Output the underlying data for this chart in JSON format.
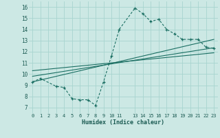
{
  "xlabel": "Humidex (Indice chaleur)",
  "bg_color": "#cce8e4",
  "grid_color": "#a8d4cf",
  "line_color": "#1a6e62",
  "xlim": [
    -0.5,
    23.5
  ],
  "ylim": [
    6.5,
    16.5
  ],
  "xticks": [
    0,
    1,
    2,
    3,
    4,
    5,
    6,
    7,
    8,
    9,
    10,
    11,
    13,
    14,
    15,
    16,
    17,
    18,
    19,
    20,
    21,
    22,
    23
  ],
  "yticks": [
    7,
    8,
    9,
    10,
    11,
    12,
    13,
    14,
    15,
    16
  ],
  "curve_x": [
    0,
    1,
    3,
    4,
    5,
    6,
    7,
    8,
    9,
    10,
    11,
    13,
    14,
    15,
    16,
    17,
    18,
    19,
    20,
    21,
    22,
    23
  ],
  "curve_y": [
    9.3,
    9.6,
    8.9,
    8.8,
    7.8,
    7.7,
    7.7,
    7.2,
    9.3,
    11.6,
    14.0,
    15.9,
    15.4,
    14.7,
    14.9,
    14.0,
    13.6,
    13.1,
    13.1,
    13.1,
    12.4,
    12.3
  ],
  "line1_x": [
    0,
    23
  ],
  "line1_y": [
    9.3,
    13.1
  ],
  "line2_x": [
    0,
    23
  ],
  "line2_y": [
    9.8,
    12.35
  ],
  "line3_x": [
    0,
    23
  ],
  "line3_y": [
    10.3,
    11.9
  ]
}
